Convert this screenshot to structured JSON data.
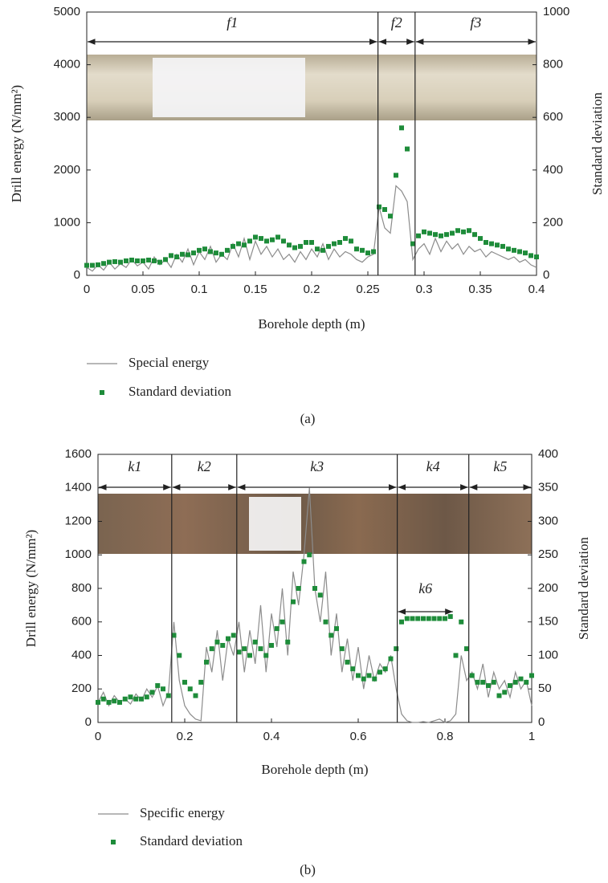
{
  "chart_data": [
    {
      "type": "line",
      "caption": "(a)",
      "xlabel": "Borehole depth (m)",
      "ylabel": "Drill energy (N/mm²)",
      "y2label": "Standard deviation",
      "xlim": [
        0,
        0.4
      ],
      "xticks": [
        0,
        0.05,
        0.1,
        0.15,
        0.2,
        0.25,
        0.3,
        0.35,
        0.4
      ],
      "ylim": [
        0,
        5000
      ],
      "yticks": [
        0,
        1000,
        2000,
        3000,
        4000,
        5000
      ],
      "y2lim": [
        0,
        1000
      ],
      "y2ticks": [
        0,
        200,
        400,
        600,
        800,
        1000
      ],
      "regions": [
        {
          "label": "f1",
          "start": 0,
          "end": 0.259
        },
        {
          "label": "f2",
          "start": 0.259,
          "end": 0.292
        },
        {
          "label": "f3",
          "start": 0.292,
          "end": 0.4
        }
      ],
      "x": [
        0,
        0.005,
        0.01,
        0.015,
        0.02,
        0.025,
        0.03,
        0.035,
        0.04,
        0.045,
        0.05,
        0.055,
        0.06,
        0.065,
        0.07,
        0.075,
        0.08,
        0.085,
        0.09,
        0.095,
        0.1,
        0.105,
        0.11,
        0.115,
        0.12,
        0.125,
        0.13,
        0.135,
        0.14,
        0.145,
        0.15,
        0.155,
        0.16,
        0.165,
        0.17,
        0.175,
        0.18,
        0.185,
        0.19,
        0.195,
        0.2,
        0.205,
        0.21,
        0.215,
        0.22,
        0.225,
        0.23,
        0.235,
        0.24,
        0.245,
        0.25,
        0.255,
        0.26,
        0.265,
        0.27,
        0.275,
        0.28,
        0.285,
        0.29,
        0.295,
        0.3,
        0.305,
        0.31,
        0.315,
        0.32,
        0.325,
        0.33,
        0.335,
        0.34,
        0.345,
        0.35,
        0.355,
        0.36,
        0.365,
        0.37,
        0.375,
        0.38,
        0.385,
        0.39,
        0.395,
        0.4
      ],
      "series": [
        {
          "name": "Special energy",
          "type": "line",
          "color": "#8c8c8c",
          "values": [
            150,
            80,
            200,
            100,
            250,
            120,
            220,
            150,
            300,
            180,
            250,
            120,
            350,
            200,
            300,
            150,
            400,
            250,
            500,
            200,
            450,
            300,
            550,
            250,
            400,
            300,
            600,
            350,
            700,
            300,
            650,
            400,
            550,
            350,
            500,
            300,
            400,
            250,
            450,
            300,
            500,
            350,
            600,
            300,
            500,
            350,
            450,
            400,
            300,
            250,
            350,
            400,
            1300,
            900,
            800,
            1700,
            1600,
            1400,
            300,
            500,
            600,
            400,
            700,
            450,
            650,
            500,
            600,
            400,
            550,
            450,
            500,
            350,
            450,
            400,
            350,
            300,
            350,
            250,
            300,
            200,
            150
          ]
        },
        {
          "name": "Standard deviation",
          "type": "scatter",
          "axis": "y2",
          "color": "#1e8c3a",
          "values": [
            38,
            38,
            40,
            45,
            50,
            52,
            50,
            55,
            58,
            55,
            55,
            58,
            55,
            50,
            60,
            75,
            70,
            80,
            78,
            85,
            95,
            100,
            90,
            85,
            80,
            95,
            110,
            120,
            115,
            130,
            145,
            140,
            130,
            135,
            145,
            130,
            115,
            105,
            110,
            125,
            125,
            100,
            95,
            110,
            120,
            125,
            140,
            130,
            100,
            95,
            85,
            90,
            260,
            250,
            225,
            380,
            560,
            480,
            120,
            150,
            165,
            160,
            155,
            150,
            155,
            160,
            170,
            165,
            170,
            155,
            140,
            125,
            120,
            115,
            110,
            100,
            95,
            90,
            85,
            75,
            70
          ]
        }
      ]
    },
    {
      "type": "line",
      "caption": "(b)",
      "xlabel": "Borehole depth (m)",
      "ylabel": "Drill energy (N/mm²)",
      "y2label": "Standard deviation",
      "xlim": [
        0,
        1
      ],
      "xticks": [
        0,
        0.2,
        0.4,
        0.6,
        0.8,
        1
      ],
      "ylim": [
        0,
        1600
      ],
      "yticks": [
        0,
        200,
        400,
        600,
        800,
        1000,
        1200,
        1400,
        1600
      ],
      "y2lim": [
        0,
        400
      ],
      "y2ticks": [
        0,
        50,
        100,
        150,
        200,
        250,
        300,
        350,
        400
      ],
      "regions": [
        {
          "label": "k1",
          "start": 0,
          "end": 0.17
        },
        {
          "label": "k2",
          "start": 0.17,
          "end": 0.32
        },
        {
          "label": "k3",
          "start": 0.32,
          "end": 0.69
        },
        {
          "label": "k4",
          "start": 0.69,
          "end": 0.855
        },
        {
          "label": "k5",
          "start": 0.855,
          "end": 1
        }
      ],
      "subregion": {
        "label": "k6",
        "start": 0.69,
        "end": 0.82
      },
      "x": [
        0,
        0.0125,
        0.025,
        0.0375,
        0.05,
        0.0625,
        0.075,
        0.0875,
        0.1,
        0.1125,
        0.125,
        0.1375,
        0.15,
        0.1625,
        0.175,
        0.1875,
        0.2,
        0.2125,
        0.225,
        0.2375,
        0.25,
        0.2625,
        0.275,
        0.2875,
        0.3,
        0.3125,
        0.325,
        0.3375,
        0.35,
        0.3625,
        0.375,
        0.3875,
        0.4,
        0.4125,
        0.425,
        0.4375,
        0.45,
        0.4625,
        0.475,
        0.4875,
        0.5,
        0.5125,
        0.525,
        0.5375,
        0.55,
        0.5625,
        0.575,
        0.5875,
        0.6,
        0.6125,
        0.625,
        0.6375,
        0.65,
        0.6625,
        0.675,
        0.6875,
        0.7,
        0.7125,
        0.725,
        0.7375,
        0.75,
        0.7625,
        0.775,
        0.7875,
        0.8,
        0.8125,
        0.825,
        0.8375,
        0.85,
        0.8625,
        0.875,
        0.8875,
        0.9,
        0.9125,
        0.925,
        0.9375,
        0.95,
        0.9625,
        0.975,
        0.9875,
        1
      ],
      "series": [
        {
          "name": "Specific energy",
          "type": "line",
          "color": "#8c8c8c",
          "values": [
            120,
            180,
            100,
            160,
            120,
            140,
            110,
            170,
            130,
            200,
            150,
            220,
            100,
            180,
            600,
            250,
            100,
            50,
            20,
            10,
            450,
            300,
            550,
            250,
            500,
            400,
            600,
            300,
            550,
            350,
            700,
            300,
            650,
            450,
            800,
            400,
            900,
            700,
            1000,
            1400,
            800,
            600,
            900,
            400,
            650,
            300,
            500,
            250,
            450,
            200,
            400,
            250,
            350,
            300,
            400,
            200,
            50,
            10,
            0,
            0,
            5,
            0,
            10,
            20,
            0,
            10,
            50,
            400,
            250,
            300,
            200,
            350,
            150,
            300,
            200,
            250,
            150,
            300,
            200,
            250,
            100
          ]
        },
        {
          "name": "Standard deviation",
          "type": "scatter",
          "axis": "y2",
          "color": "#1e8c3a",
          "values": [
            30,
            35,
            30,
            32,
            30,
            35,
            38,
            35,
            35,
            38,
            45,
            55,
            50,
            40,
            130,
            100,
            60,
            50,
            40,
            60,
            90,
            110,
            120,
            115,
            125,
            130,
            105,
            110,
            100,
            120,
            110,
            100,
            115,
            140,
            150,
            120,
            180,
            200,
            240,
            250,
            200,
            190,
            150,
            130,
            140,
            110,
            90,
            80,
            70,
            65,
            70,
            65,
            75,
            80,
            95,
            110,
            150,
            155,
            155,
            155,
            155,
            155,
            155,
            155,
            155,
            158,
            100,
            150,
            110,
            70,
            60,
            60,
            55,
            60,
            40,
            45,
            55,
            60,
            65,
            60,
            70
          ]
        }
      ]
    }
  ]
}
